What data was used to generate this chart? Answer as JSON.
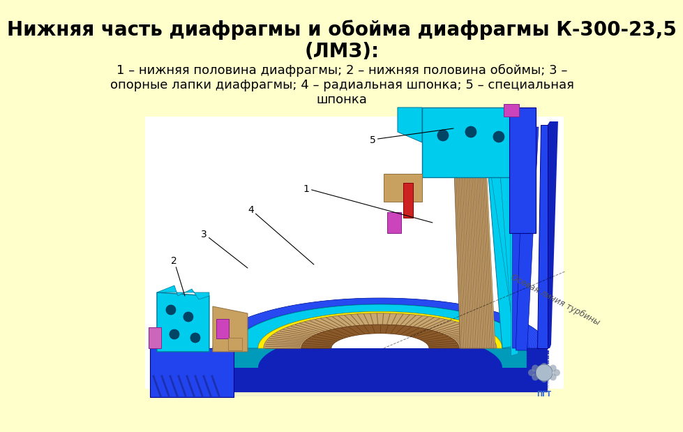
{
  "background_color": "#ffffcc",
  "title_line1": "Нижняя часть диафрагмы и обойма диафрагмы К-300-23,5",
  "title_line2": "(ЛМЗ):",
  "title_fontsize": 20,
  "title_color": "#000000",
  "title_bold": true,
  "subtitle": "1 – нижняя половина диафрагмы; 2 – нижняя половина обоймы; 3 –\nопорные лапки диафрагмы; 4 – радиальная шпонка; 5 – специальная\nшпонка",
  "subtitle_fontsize": 13,
  "subtitle_color": "#000000",
  "diagram_bg": "#ffffff",
  "blue_outer": "#2244ee",
  "blue_dark": "#1122bb",
  "blue_mid": "#3355ff",
  "cyan_color": "#00ccee",
  "cyan_dark": "#009bbb",
  "yellow_color": "#ffee00",
  "tan_color": "#c8a870",
  "brown_color": "#8B5A2B",
  "magenta_color": "#cc44bb",
  "red_color": "#cc2222",
  "axle_text": "Осевая линия турбины",
  "label_1": "1",
  "label_2": "2",
  "label_3": "3",
  "label_4": "4",
  "label_5": "5"
}
